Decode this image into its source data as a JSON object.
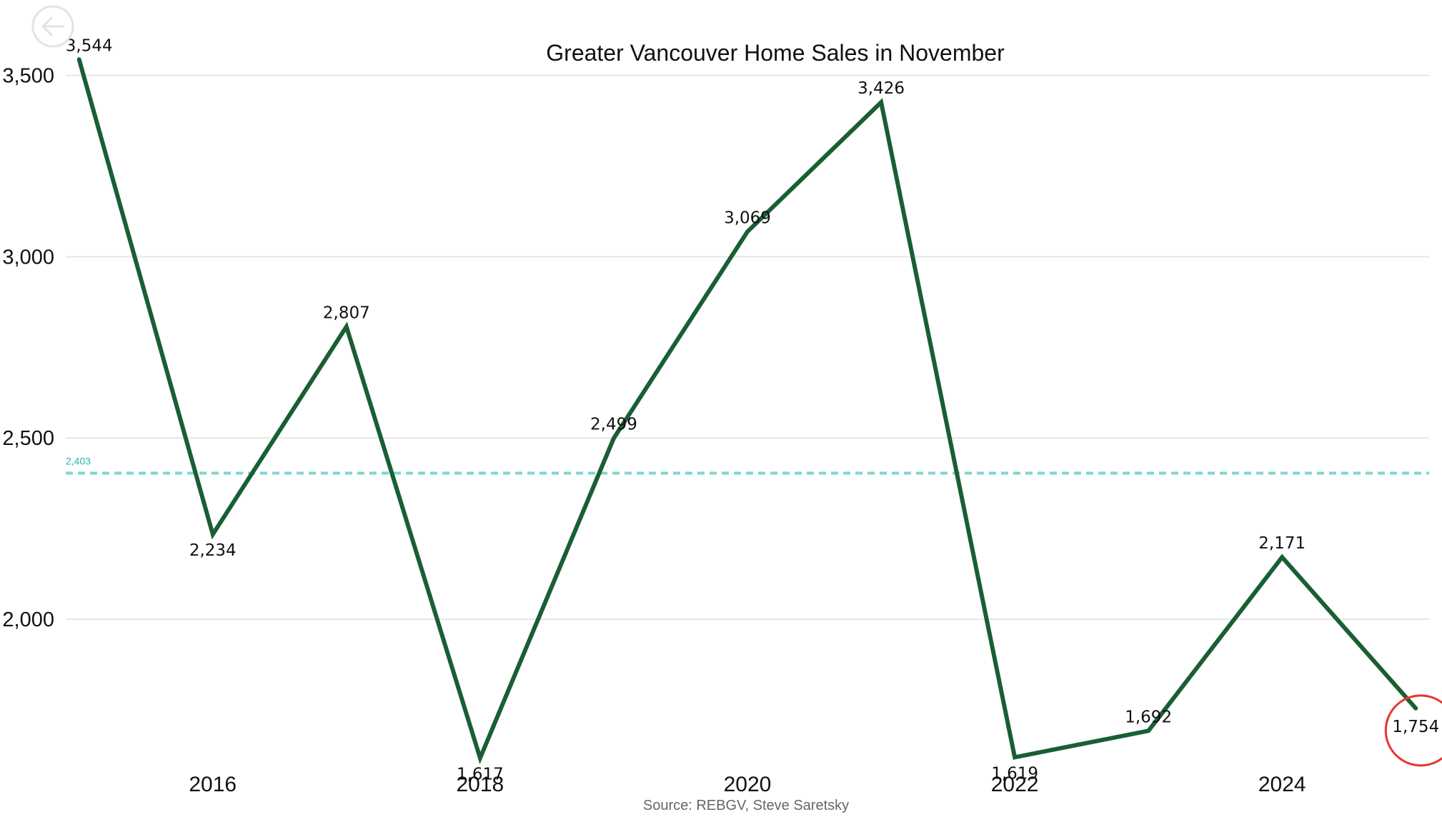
{
  "chart_data": {
    "type": "line",
    "title": "Greater Vancouver Home Sales in November",
    "source": "Source: REBGV, Steve Saretsky",
    "x": [
      2015,
      2016,
      2017,
      2018,
      2019,
      2020,
      2021,
      2022,
      2023,
      2024,
      2025
    ],
    "series": [
      {
        "values": [
          3544,
          2234,
          2807,
          1617,
          2499,
          3069,
          3426,
          1619,
          1692,
          2171,
          1754
        ],
        "color": "#1a5e34"
      }
    ],
    "data_labels": [
      "3,544",
      "2,234",
      "2,807",
      "1,617",
      "2,499",
      "3,069",
      "3,426",
      "1,619",
      "1,692",
      "2,171",
      "1,754"
    ],
    "x_ticks": [
      2016,
      2018,
      2020,
      2022,
      2024
    ],
    "x_tick_labels": [
      "2016",
      "2018",
      "2020",
      "2022",
      "2024"
    ],
    "y_ticks": [
      2000,
      2500,
      3000,
      3500
    ],
    "y_tick_labels": [
      "2,000",
      "2,500",
      "3,000",
      "3,500"
    ],
    "ylim": [
      1600,
      3590
    ],
    "xlim": [
      2014.9,
      2025.1
    ],
    "grid": "horizontal",
    "reference_line": {
      "value": 2403,
      "label": "2,403",
      "color": "#7fd6cf",
      "label_color": "#2bb5a6"
    },
    "highlight": {
      "year": 2025,
      "color": "#e8352a"
    },
    "xlabel": "",
    "ylabel": ""
  },
  "toolbar": {
    "back_icon": "back-arrow-icon"
  }
}
